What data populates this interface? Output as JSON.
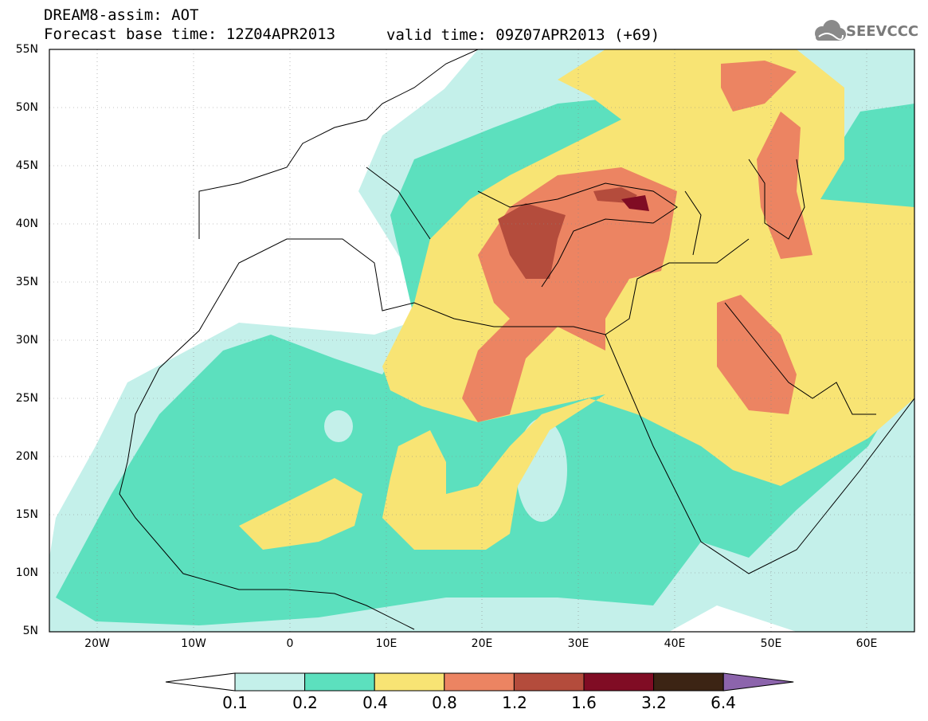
{
  "header": {
    "line1": "DREAM8-assim: AOT",
    "line2": "Forecast base time: 12Z04APR2013",
    "valid": "valid time: 09Z07APR2013 (+69)",
    "logo_text": "SEEVCCC",
    "logo_icon": "cloud-logo-icon"
  },
  "map": {
    "lon_range": [
      -25,
      65
    ],
    "lat_range": [
      5,
      55
    ],
    "lat_labels": [
      "55N",
      "50N",
      "45N",
      "40N",
      "35N",
      "30N",
      "25N",
      "20N",
      "15N",
      "10N",
      "5N"
    ],
    "lat_values": [
      55,
      50,
      45,
      40,
      35,
      30,
      25,
      20,
      15,
      10,
      5
    ],
    "lon_labels": [
      "20W",
      "10W",
      "0",
      "10E",
      "20E",
      "30E",
      "40E",
      "50E",
      "60E"
    ],
    "lon_values": [
      -20,
      -10,
      0,
      10,
      20,
      30,
      40,
      50,
      60
    ],
    "gridlines": true
  },
  "colorbar": {
    "labels": [
      "0.1",
      "0.2",
      "0.4",
      "0.8",
      "1.2",
      "1.6",
      "3.2",
      "6.4"
    ],
    "colors": [
      "#ffffff",
      "#c4f0ea",
      "#5ce0be",
      "#f8e474",
      "#ec8462",
      "#b44c3c",
      "#800c24",
      "#3c2414",
      "#8c64ac"
    ]
  }
}
